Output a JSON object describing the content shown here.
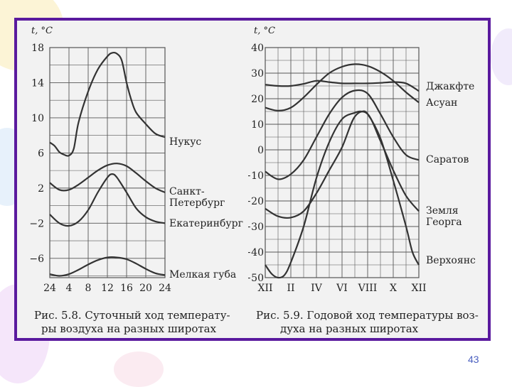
{
  "page": {
    "number": "43"
  },
  "colors": {
    "frame": "#5a1a9e",
    "line": "#333333",
    "grid": "#555555",
    "page_number": "#4a5fbf"
  },
  "chart_data": [
    {
      "type": "line",
      "caption": "Рис. 5.8. Суточный ход температуры воздуха на разных широтах",
      "caption_lines": [
        "Рис. 5.8. Суточный ход температу-",
        "ры воздуха на разных широтах"
      ],
      "ylabel": "t, °C",
      "xlabel": "",
      "ylim": [
        -8.2,
        18
      ],
      "xlim": [
        0,
        24
      ],
      "y_ticks": [
        18,
        14,
        10,
        6,
        2,
        -2,
        -6
      ],
      "y_tick_labels": [
        "18",
        "14",
        "10",
        "6",
        "2",
        "−2",
        "−6"
      ],
      "x_ticks": [
        0,
        4,
        8,
        12,
        16,
        20,
        24
      ],
      "x_tick_labels": [
        "24",
        "4",
        "8",
        "12",
        "16",
        "20",
        "24"
      ],
      "grid": true,
      "series": [
        {
          "name": "Нукус",
          "label_lines": [
            "Нукус"
          ],
          "x": [
            0,
            1,
            2,
            3,
            4,
            5,
            6,
            8,
            10,
            12,
            13,
            14,
            15,
            16,
            17,
            18,
            20,
            22,
            24
          ],
          "y": [
            7.2,
            6.8,
            6.1,
            5.8,
            5.7,
            6.5,
            9.5,
            13.0,
            15.5,
            17.0,
            17.4,
            17.3,
            16.5,
            14.0,
            12.0,
            10.6,
            9.3,
            8.2,
            7.8
          ]
        },
        {
          "name": "Санкт-Петербург",
          "label_lines": [
            "Санкт-",
            "Петербург"
          ],
          "x": [
            0,
            2,
            4,
            6,
            8,
            10,
            12,
            14,
            16,
            18,
            20,
            22,
            24
          ],
          "y": [
            2.6,
            1.8,
            1.8,
            2.4,
            3.2,
            4.0,
            4.6,
            4.8,
            4.5,
            3.7,
            2.8,
            2.0,
            1.5
          ]
        },
        {
          "name": "Екатеринбург",
          "label_lines": [
            "Екатеринбург"
          ],
          "x": [
            0,
            2,
            4,
            6,
            8,
            10,
            12,
            13,
            14,
            16,
            18,
            20,
            22,
            24
          ],
          "y": [
            -1.0,
            -2.0,
            -2.3,
            -1.8,
            -0.5,
            1.5,
            3.2,
            3.6,
            3.2,
            1.5,
            -0.3,
            -1.3,
            -1.8,
            -2.0
          ]
        },
        {
          "name": "Мелкая губа",
          "label_lines": [
            "Мелкая губа"
          ],
          "x": [
            0,
            2,
            4,
            6,
            8,
            10,
            12,
            14,
            16,
            18,
            20,
            22,
            24
          ],
          "y": [
            -7.8,
            -8.0,
            -7.8,
            -7.3,
            -6.7,
            -6.2,
            -5.9,
            -5.9,
            -6.1,
            -6.6,
            -7.2,
            -7.7,
            -7.9
          ]
        }
      ]
    },
    {
      "type": "line",
      "caption": "Рис. 5.9. Годовой ход температуры воздуха на разных широтах",
      "caption_lines": [
        "Рис. 5.9. Годовой ход температуры воз-",
        "духа на разных широтах"
      ],
      "ylabel": "t, °C",
      "xlabel": "",
      "ylim": [
        -50,
        40
      ],
      "xlim": [
        0,
        12
      ],
      "y_ticks": [
        40,
        30,
        20,
        10,
        0,
        -10,
        -20,
        -30,
        -40,
        -50
      ],
      "y_tick_labels": [
        "40",
        "30",
        "20",
        "10",
        "0",
        "−10",
        "−20",
        "−30",
        "−40",
        "−50"
      ],
      "x_ticks": [
        0,
        2,
        4,
        6,
        8,
        10,
        12
      ],
      "x_tick_labels": [
        "XII",
        "II",
        "IV",
        "VI",
        "VIII",
        "X",
        "XII"
      ],
      "grid": true,
      "series": [
        {
          "name": "Джакфте",
          "label_lines": [
            "Джакфте"
          ],
          "x": [
            0,
            1,
            2,
            3,
            4,
            5,
            6,
            7,
            8,
            9,
            10,
            11,
            12
          ],
          "y": [
            25.5,
            25.0,
            25.0,
            25.8,
            27.0,
            26.5,
            26.0,
            26.0,
            26.0,
            26.2,
            26.5,
            26.0,
            23.0
          ]
        },
        {
          "name": "Асуан",
          "label_lines": [
            "Асуан"
          ],
          "x": [
            0,
            1,
            2,
            3,
            4,
            5,
            6,
            7,
            8,
            9,
            10,
            11,
            12
          ],
          "y": [
            16.5,
            15.3,
            16.5,
            20.5,
            25.5,
            30.0,
            32.5,
            33.5,
            32.8,
            30.5,
            27.0,
            22.5,
            18.5
          ]
        },
        {
          "name": "Саратов",
          "label_lines": [
            "Саратов"
          ],
          "x": [
            0,
            1,
            2,
            3,
            4,
            5,
            6,
            7,
            8,
            9,
            10,
            11,
            12
          ],
          "y": [
            -8.5,
            -11.5,
            -9.5,
            -4.0,
            5.0,
            14.0,
            20.5,
            23.2,
            22.0,
            14.0,
            5.0,
            -2.0,
            -4.0
          ]
        },
        {
          "name": "Земля Георга",
          "label_lines": [
            "Земля",
            "Георга"
          ],
          "x": [
            0,
            1,
            2,
            3,
            4,
            5,
            6,
            7,
            8,
            9,
            10,
            11,
            12
          ],
          "y": [
            -23.0,
            -26.0,
            -26.5,
            -24.0,
            -17.0,
            -8.0,
            1.0,
            13.0,
            14.0,
            3.5,
            -8.0,
            -18.0,
            -24.0
          ]
        },
        {
          "name": "Верхоянск",
          "label_lines": [
            "Верхоянск"
          ],
          "x": [
            0,
            0.5,
            1,
            1.5,
            2,
            3,
            4,
            5,
            6,
            7,
            7.5,
            8,
            9,
            10,
            11,
            11.5,
            12
          ],
          "y": [
            -45.0,
            -48.5,
            -50.0,
            -49.0,
            -44.0,
            -30.0,
            -11.0,
            3.0,
            12.0,
            14.5,
            15.0,
            14.0,
            4.5,
            -12.0,
            -30.0,
            -40.0,
            -45.0
          ]
        }
      ]
    }
  ]
}
